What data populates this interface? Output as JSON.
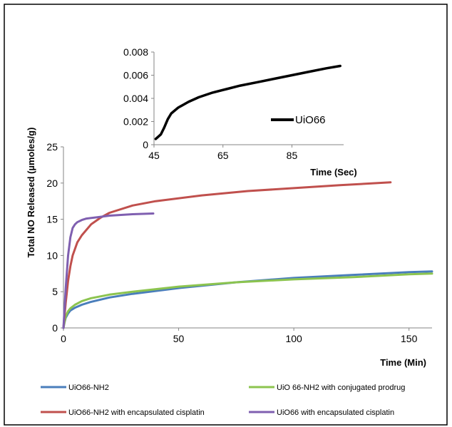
{
  "chart_data": [
    {
      "type": "line",
      "xlabel": "Time (Min)",
      "ylabel": "Total NO Released  (µmoles/g)",
      "xlim": [
        0,
        160
      ],
      "ylim": [
        0,
        25
      ],
      "xticks": [
        "0",
        "50",
        "100",
        "150"
      ],
      "yticks": [
        "0",
        "5",
        "10",
        "15",
        "20",
        "25"
      ],
      "legend_position": "bottom",
      "series": [
        {
          "name": "UiO66-NH2",
          "color": "#4a7ebb",
          "x": [
            0,
            0.5,
            1,
            2,
            3,
            5,
            8,
            12,
            20,
            30,
            50,
            75,
            100,
            125,
            150,
            160
          ],
          "y": [
            0,
            0.8,
            1.4,
            2.0,
            2.4,
            2.8,
            3.2,
            3.6,
            4.2,
            4.7,
            5.5,
            6.3,
            6.9,
            7.3,
            7.7,
            7.8
          ]
        },
        {
          "name": "UiO 66-NH2 with conjugated prodrug",
          "color": "#8cc44f",
          "x": [
            0,
            0.5,
            1,
            2,
            3,
            5,
            8,
            12,
            20,
            30,
            50,
            75,
            100,
            125,
            150,
            160
          ],
          "y": [
            0,
            0.9,
            1.6,
            2.3,
            2.7,
            3.2,
            3.7,
            4.1,
            4.6,
            5.0,
            5.7,
            6.3,
            6.7,
            7.0,
            7.4,
            7.5
          ]
        },
        {
          "name": "UiO66-NH2 with encapsulated cisplatin",
          "color": "#c0504d",
          "x": [
            0,
            1,
            2,
            3,
            4,
            6,
            8,
            12,
            16,
            20,
            30,
            40,
            60,
            80,
            100,
            120,
            142
          ],
          "y": [
            0,
            3.5,
            6.5,
            8.5,
            10.0,
            11.8,
            12.8,
            14.3,
            15.2,
            15.9,
            16.9,
            17.5,
            18.3,
            18.9,
            19.3,
            19.7,
            20.1
          ]
        },
        {
          "name": "UiO66 with encapsulated cisplatin",
          "color": "#7f5fb0",
          "x": [
            0,
            1,
            2,
            3,
            4,
            5,
            6,
            8,
            10,
            15,
            20,
            30,
            39
          ],
          "y": [
            0,
            5.5,
            10.0,
            12.5,
            13.8,
            14.3,
            14.6,
            14.9,
            15.1,
            15.3,
            15.5,
            15.7,
            15.8
          ]
        }
      ]
    },
    {
      "type": "line",
      "xlabel": "Time (Sec)",
      "ylabel": "",
      "xlim": [
        45,
        100
      ],
      "ylim": [
        0,
        0.008
      ],
      "xticks": [
        "45",
        "65",
        "85"
      ],
      "yticks": [
        "0",
        "0.002",
        "0.004",
        "0.006",
        "0.008"
      ],
      "legend_position": "right",
      "series": [
        {
          "name": "UiO66",
          "color": "#000000",
          "x": [
            45.5,
            47,
            48,
            49,
            50,
            52,
            55,
            58,
            62,
            66,
            70,
            75,
            80,
            85,
            90,
            95,
            99
          ],
          "y": [
            0.0005,
            0.0009,
            0.0015,
            0.0022,
            0.0027,
            0.0032,
            0.0037,
            0.0041,
            0.0045,
            0.0048,
            0.0051,
            0.0054,
            0.0057,
            0.006,
            0.0063,
            0.0066,
            0.0068
          ]
        }
      ]
    }
  ]
}
